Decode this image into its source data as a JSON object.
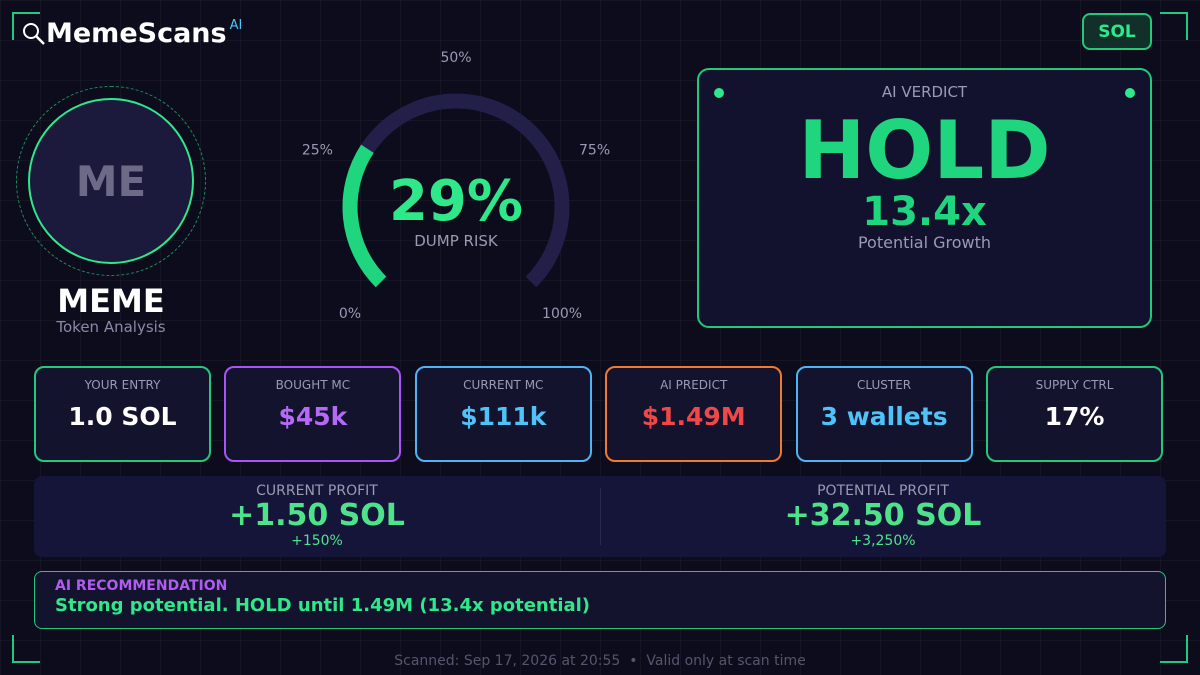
{
  "brand": {
    "name": "MemeScans",
    "badge": "AI"
  },
  "chain": "SOL",
  "token": {
    "avatar": "ME",
    "symbol": "MEME",
    "subtitle": "Token Analysis"
  },
  "gauge": {
    "value": 29,
    "value_label": "29%",
    "caption": "DUMP RISK",
    "range": [
      0,
      100
    ],
    "ticks": [
      {
        "value": 0,
        "label": "0%"
      },
      {
        "value": 25,
        "label": "25%"
      },
      {
        "value": 50,
        "label": "50%"
      },
      {
        "value": 75,
        "label": "75%"
      },
      {
        "value": 100,
        "label": "100%"
      }
    ]
  },
  "verdict": {
    "title": "AI VERDICT",
    "decision": "HOLD",
    "multiplier": "13.4x",
    "caption": "Potential Growth"
  },
  "stats": [
    {
      "label": "YOUR ENTRY",
      "value": "1.0 SOL"
    },
    {
      "label": "BOUGHT MC",
      "value": "$45k"
    },
    {
      "label": "CURRENT MC",
      "value": "$111k"
    },
    {
      "label": "AI PREDICT",
      "value": "$1.49M"
    },
    {
      "label": "CLUSTER",
      "value": "3 wallets"
    },
    {
      "label": "SUPPLY CTRL",
      "value": "17%"
    }
  ],
  "profit": [
    {
      "label": "CURRENT PROFIT",
      "value": "+1.50 SOL",
      "percent": "+150%"
    },
    {
      "label": "POTENTIAL PROFIT",
      "value": "+32.50 SOL",
      "percent": "+3,250%"
    }
  ],
  "recommendation": {
    "title": "AI RECOMMENDATION",
    "text": "Strong potential. HOLD until 1.49M (13.4x potential)"
  },
  "footer": {
    "scanned": "Scanned: Sep 17, 2026 at 20:55",
    "note": "Valid only at scan time"
  }
}
